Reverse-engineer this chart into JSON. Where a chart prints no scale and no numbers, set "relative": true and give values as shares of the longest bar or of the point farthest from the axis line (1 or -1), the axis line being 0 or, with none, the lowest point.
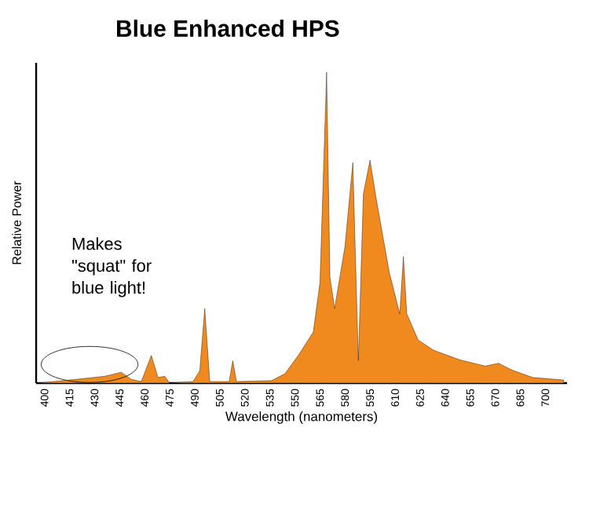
{
  "chart_data": {
    "type": "area",
    "title": "Blue Enhanced HPS",
    "xlabel": "Wavelength (nanometers)",
    "ylabel": "Relative Power",
    "relative": true,
    "color": "#f08a1e",
    "x": [
      395.6,
      420.6,
      436,
      446,
      452,
      458,
      464,
      468,
      472,
      475,
      489,
      493,
      496,
      499,
      510.6,
      512.8,
      515,
      536,
      544,
      552,
      561,
      565,
      569,
      571,
      573.8,
      580,
      584.7,
      588,
      591,
      595,
      598.8,
      606.5,
      612.8,
      615,
      617,
      623.8,
      633,
      648.7,
      664,
      672,
      680,
      692.5,
      711
    ],
    "values": [
      0,
      0.013,
      0.022,
      0.035,
      0.012,
      0.005,
      0.089,
      0.018,
      0.022,
      0,
      0.005,
      0.04,
      0.24,
      0.005,
      0.005,
      0.072,
      0.005,
      0.008,
      0.03,
      0.089,
      0.164,
      0.323,
      1.0,
      0.34,
      0.24,
      0.44,
      0.709,
      0.072,
      0.608,
      0.717,
      0.59,
      0.357,
      0.223,
      0.407,
      0.223,
      0.139,
      0.106,
      0.075,
      0.055,
      0.064,
      0.042,
      0.018,
      0.01
    ],
    "xlim": [
      395,
      713
    ],
    "xticks": [
      400,
      415,
      430,
      445,
      460,
      475,
      490,
      505,
      520,
      535,
      550,
      565,
      580,
      595,
      610,
      625,
      640,
      655,
      670,
      685,
      700
    ],
    "grid": false,
    "annotations": [
      "Makes \"squat\" for blue light!"
    ]
  }
}
